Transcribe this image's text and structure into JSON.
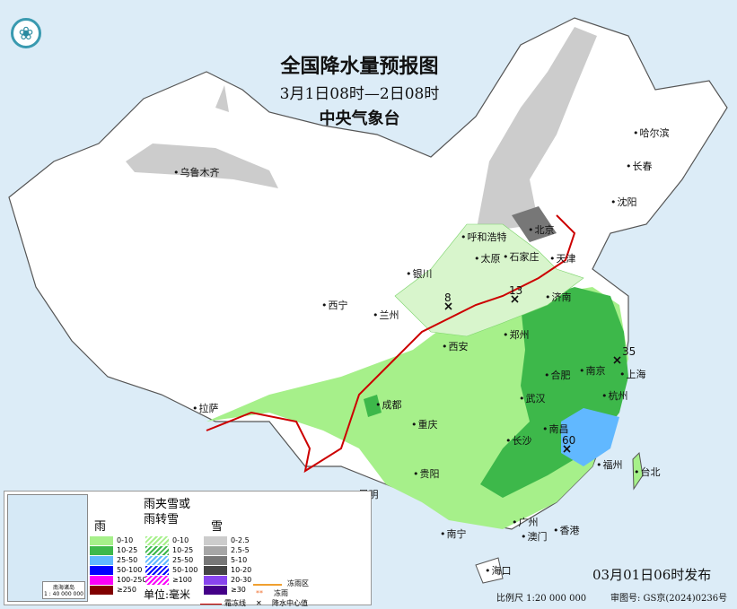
{
  "title": {
    "main": "全国降水量预报图",
    "period": "3月1日08时—2日08时",
    "agency": "中央气象台"
  },
  "logo": {
    "icon": "cma-logo"
  },
  "cities": [
    "乌鲁木齐",
    "哈尔滨",
    "长春",
    "沈阳",
    "呼和浩特",
    "北京",
    "天津",
    "石家庄",
    "太原",
    "济南",
    "银川",
    "西宁",
    "兰州",
    "郑州",
    "西安",
    "合肥",
    "南京",
    "上海",
    "杭州",
    "武汉",
    "成都",
    "重庆",
    "拉萨",
    "长沙",
    "南昌",
    "福州",
    "台北",
    "贵阳",
    "昆明",
    "南宁",
    "广州",
    "澳门",
    "香港",
    "海口"
  ],
  "precip_centers": [
    "8",
    "13",
    "35",
    "60"
  ],
  "legend": {
    "rain": {
      "title": "雨",
      "items": [
        {
          "label": "0-10",
          "color": "#a6f08a"
        },
        {
          "label": "10-25",
          "color": "#3db84a"
        },
        {
          "label": "25-50",
          "color": "#61b8ff"
        },
        {
          "label": "50-100",
          "color": "#0000fe"
        },
        {
          "label": "100-250",
          "color": "#fa00fa"
        },
        {
          "label": "≥250",
          "color": "#800000"
        }
      ]
    },
    "mixed": {
      "title": "雨夹雪或雨转雪",
      "items": [
        {
          "label": "0-10",
          "color": "#a6f08a"
        },
        {
          "label": "10-25",
          "color": "#3db84a"
        },
        {
          "label": "25-50",
          "color": "#61b8ff"
        },
        {
          "label": "50-100",
          "color": "#0000fe"
        },
        {
          "label": "≥100",
          "color": "#fa00fa"
        }
      ]
    },
    "snow": {
      "title": "雪",
      "items": [
        {
          "label": "0-2.5",
          "color": "#cccccc"
        },
        {
          "label": "2.5-5",
          "color": "#a6a6a6"
        },
        {
          "label": "5-10",
          "color": "#777777"
        },
        {
          "label": "10-20",
          "color": "#454545"
        },
        {
          "label": "20-30",
          "color": "#8844ee"
        },
        {
          "label": "≥30",
          "color": "#440088"
        }
      ]
    },
    "unit": "单位:毫米",
    "freezing_zone": "冻雨区",
    "freezing_rain": "冻雨",
    "frost_line": "霜冻线",
    "center_value": "降水中心值",
    "inset_caption": "南海诸岛",
    "inset_scale": "1 : 40 000 000"
  },
  "footer": {
    "issued": "03月01日06时发布",
    "scale": "比例尺 1:20 000 000",
    "approval": "审图号: GS京(2024)0236号"
  }
}
